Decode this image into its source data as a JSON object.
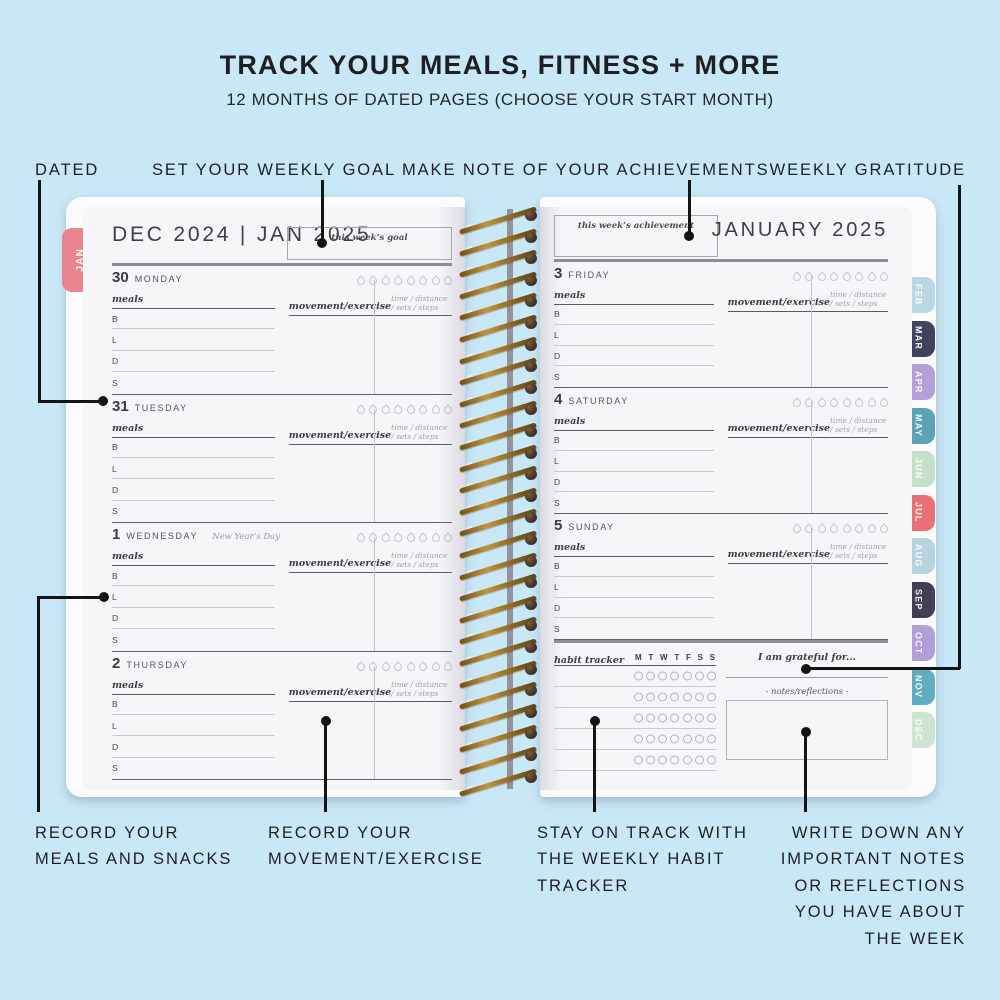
{
  "header": {
    "title": "TRACK YOUR MEALS, FITNESS + MORE",
    "subtitle": "12 MONTHS OF DATED PAGES (CHOOSE YOUR START MONTH)"
  },
  "callouts": {
    "dated": "DATED",
    "weekly_goal": "SET YOUR WEEKLY GOAL",
    "achievements": "MAKE NOTE OF YOUR ACHIEVEMENTS",
    "gratitude": "WEEKLY GRATITUDE",
    "record_meals": "RECORD YOUR MEALS AND SNACKS",
    "record_movement": "RECORD YOUR MOVEMENT/EXERCISE",
    "habit_tracker": "STAY ON TRACK WITH THE WEEKLY HABIT TRACKER",
    "notes_reflections": "WRITE DOWN ANY IMPORTANT NOTES OR REFLECTIONS YOU HAVE ABOUT THE WEEK"
  },
  "planner": {
    "left_page": {
      "month_header": "DEC 2024 | JAN 2025",
      "goal_box_label": "this week’s goal",
      "tab": {
        "label": "JAN",
        "color": "#e9858e"
      },
      "days": [
        {
          "num": "30",
          "name": "MONDAY",
          "note": ""
        },
        {
          "num": "31",
          "name": "TUESDAY",
          "note": ""
        },
        {
          "num": "1",
          "name": "WEDNESDAY",
          "note": "New Year’s Day"
        },
        {
          "num": "2",
          "name": "THURSDAY",
          "note": ""
        }
      ]
    },
    "right_page": {
      "month_header": "JANUARY 2025",
      "achievement_box_label": "this week’s achievement",
      "days": [
        {
          "num": "3",
          "name": "FRIDAY",
          "note": ""
        },
        {
          "num": "4",
          "name": "SATURDAY",
          "note": ""
        },
        {
          "num": "5",
          "name": "SUNDAY",
          "note": ""
        }
      ],
      "habit_section": {
        "tracker_label": "habit tracker",
        "week_days": [
          "M",
          "T",
          "W",
          "T",
          "F",
          "S",
          "S"
        ],
        "rows": 5,
        "circles_per_row": 7,
        "grateful_label": "I am grateful for...",
        "notes_label": "-  notes/reflections  -"
      },
      "tabs": [
        {
          "label": "FEB",
          "color": "#b8d8e3"
        },
        {
          "label": "MAR",
          "color": "#3f4360"
        },
        {
          "label": "APR",
          "color": "#b49fd9"
        },
        {
          "label": "MAY",
          "color": "#5ba3b9"
        },
        {
          "label": "JUN",
          "color": "#c5e0c8"
        },
        {
          "label": "JUL",
          "color": "#e97076"
        },
        {
          "label": "AUG",
          "color": "#b5d4e0"
        },
        {
          "label": "SEP",
          "color": "#403f55"
        },
        {
          "label": "OCT",
          "color": "#b19fda"
        },
        {
          "label": "NOV",
          "color": "#60adc0"
        },
        {
          "label": "DEC",
          "color": "#cee4d1"
        }
      ]
    },
    "day_block_labels": {
      "meals": "meals",
      "movement": "movement/exercise",
      "metrics": "time / distance / sets / steps",
      "meal_rows": [
        "B",
        "L",
        "D",
        "S"
      ],
      "droplet_count": 8
    }
  },
  "colors": {
    "background": "#c9e8f7",
    "page": "#f6f5f8",
    "cover": "#fbfbfd",
    "coil_gold": "#a8782a",
    "callout_line": "#141414"
  }
}
